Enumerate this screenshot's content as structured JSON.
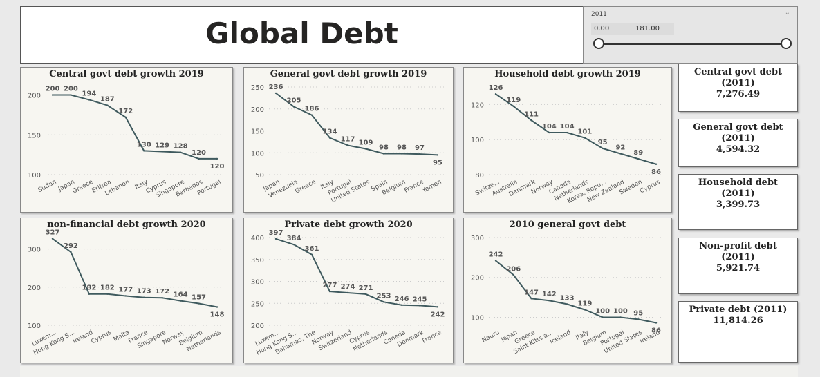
{
  "title": "Global Debt",
  "slicer": {
    "field": "2011",
    "min": "0.00",
    "max": "181.00",
    "range": [
      0,
      181
    ]
  },
  "cards": [
    {
      "label": "Central govt debt (2011)",
      "value": "7,276.49"
    },
    {
      "label": "General govt debt (2011)",
      "value": "4,594.32"
    },
    {
      "label": "Household debt (2011)",
      "value": "3,399.73"
    },
    {
      "label": "Non-profit debt (2011)",
      "value": "5,921.74"
    },
    {
      "label": "Private debt (2011)",
      "value": "11,814.26"
    }
  ],
  "colors": {
    "line": "#3f5a5e",
    "grid": "#cccccc",
    "panel_bg": "#f7f6f1"
  },
  "chart_data": [
    {
      "type": "line",
      "title": "Central govt debt growth 2019",
      "categories": [
        "Sudan",
        "Japan",
        "Greece",
        "Eritrea",
        "Lebanon",
        "Italy",
        "Cyprus",
        "Singapore",
        "Barbados",
        "Portugal"
      ],
      "values": [
        200,
        200,
        194,
        187,
        172,
        130,
        129,
        128,
        120,
        120
      ],
      "labels": [
        "200",
        "200",
        "194",
        "187",
        "172",
        "130",
        "129",
        "128",
        "120",
        "120"
      ],
      "ylim": [
        100,
        210
      ],
      "yticks": [
        100,
        150,
        200
      ],
      "grid": true
    },
    {
      "type": "line",
      "title": "General govt debt growth 2019",
      "categories": [
        "Japan",
        "Venezuela",
        "Greece",
        "Italy",
        "Portugal",
        "United States",
        "Spain",
        "Belgium",
        "France",
        "Yemen"
      ],
      "values": [
        236,
        205,
        186,
        134,
        117,
        109,
        98,
        98,
        97,
        95
      ],
      "labels": [
        "236",
        "205",
        "186",
        "134",
        "117",
        "109",
        "98",
        "98",
        "97",
        "95"
      ],
      "ylim": [
        50,
        250
      ],
      "yticks": [
        50,
        100,
        150,
        200,
        250
      ],
      "grid": true
    },
    {
      "type": "line",
      "title": "Household debt growth 2019",
      "categories": [
        "Switze...",
        "Australia",
        "Denmark",
        "Norway",
        "Canada",
        "Netherlands",
        "Korea, Repu...",
        "New Zealand",
        "Sweden",
        "Cyprus"
      ],
      "values": [
        126,
        119,
        111,
        104,
        104,
        101,
        95,
        92,
        89,
        86
      ],
      "labels": [
        "126",
        "119",
        "111",
        "104",
        "104",
        "101",
        "95",
        "92",
        "89",
        "86"
      ],
      "ylim": [
        80,
        130
      ],
      "yticks": [
        80,
        100,
        120
      ],
      "grid": true
    },
    {
      "type": "line",
      "title": "non-financial debt growth 2020",
      "categories": [
        "Luxem...",
        "Hong Kong S...",
        "Ireland",
        "Cyprus",
        "Malta",
        "France",
        "Singapore",
        "Norway",
        "Belgium",
        "Netherlands"
      ],
      "values": [
        327,
        292,
        182,
        182,
        177,
        173,
        172,
        164,
        157,
        148
      ],
      "labels": [
        "327",
        "292",
        "182",
        "182",
        "177",
        "173",
        "172",
        "164",
        "157",
        "148"
      ],
      "ylim": [
        100,
        330
      ],
      "yticks": [
        100,
        200,
        300
      ],
      "grid": true
    },
    {
      "type": "line",
      "title": "Private debt growth 2020",
      "categories": [
        "Luxem...",
        "Hong Kong S...",
        "Bahamas, The",
        "Norway",
        "Switzerland",
        "Cyprus",
        "Netherlands",
        "Canada",
        "Denmark",
        "France"
      ],
      "values": [
        397,
        384,
        361,
        277,
        274,
        271,
        253,
        246,
        245,
        242
      ],
      "labels": [
        "397",
        "384",
        "361",
        "277",
        "274",
        "271",
        "253",
        "246",
        "245",
        "242"
      ],
      "ylim": [
        200,
        400
      ],
      "yticks": [
        200,
        250,
        300,
        350,
        400
      ],
      "grid": true
    },
    {
      "type": "line",
      "title": "2010 general govt debt",
      "categories": [
        "Nauru",
        "Japan",
        "Greece",
        "Saint Kitts a...",
        "Iceland",
        "Italy",
        "Belgium",
        "Portugal",
        "United States",
        "Ireland"
      ],
      "values": [
        242,
        206,
        147,
        142,
        133,
        119,
        100,
        100,
        95,
        86
      ],
      "labels": [
        "242",
        "206",
        "147",
        "142",
        "133",
        "119",
        "100",
        "100",
        "95",
        "86"
      ],
      "ylim": [
        80,
        300
      ],
      "yticks": [
        100,
        200,
        300
      ],
      "grid": true
    }
  ]
}
